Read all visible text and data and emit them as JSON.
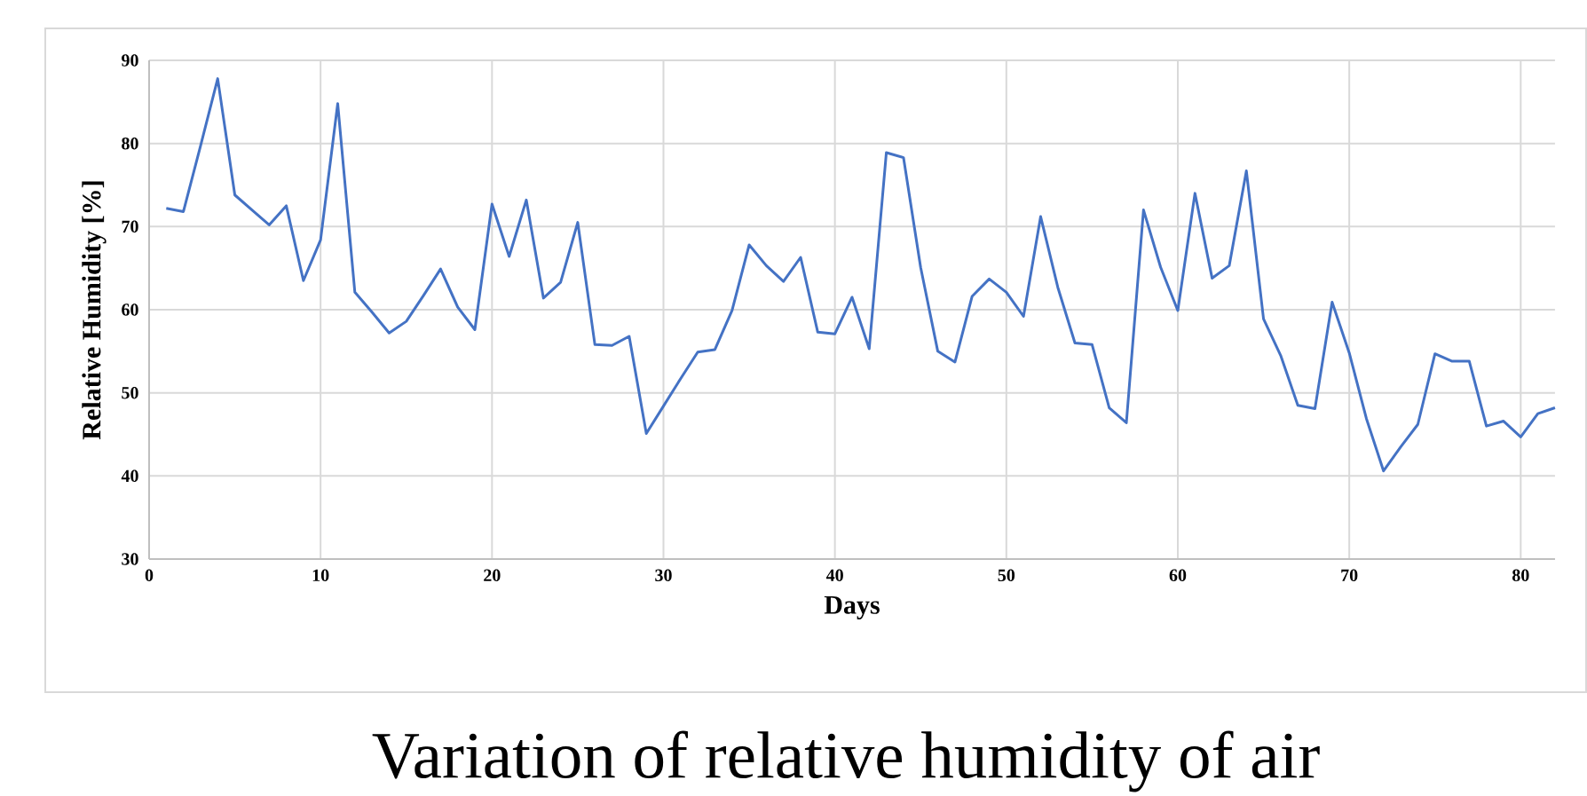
{
  "chart_data": {
    "type": "line",
    "title": "Variation of relative humidity of air",
    "xlabel": "Days",
    "ylabel": "Relative Humidity [%]",
    "x": [
      1,
      2,
      3,
      4,
      5,
      6,
      7,
      8,
      9,
      10,
      11,
      12,
      13,
      14,
      15,
      16,
      17,
      18,
      19,
      20,
      21,
      22,
      23,
      24,
      25,
      26,
      27,
      28,
      29,
      30,
      31,
      32,
      33,
      34,
      35,
      36,
      37,
      38,
      39,
      40,
      41,
      42,
      43,
      44,
      45,
      46,
      47,
      48,
      49,
      50,
      51,
      52,
      53,
      54,
      55,
      56,
      57,
      58,
      59,
      60,
      61,
      62,
      63,
      64,
      65,
      66,
      67,
      68,
      69,
      70,
      71,
      72,
      73,
      74,
      75,
      76,
      77,
      78,
      79,
      80,
      81,
      82
    ],
    "series": [
      {
        "color": "#4472c4",
        "values": [
          72.2,
          71.8,
          79.7,
          87.8,
          73.8,
          72.0,
          70.2,
          72.5,
          63.5,
          68.4,
          84.8,
          62.1,
          59.7,
          57.2,
          58.6,
          61.7,
          64.9,
          60.3,
          57.6,
          72.7,
          66.4,
          73.2,
          61.4,
          63.3,
          70.5,
          55.8,
          55.7,
          56.8,
          45.1,
          48.4,
          51.7,
          54.9,
          55.2,
          59.9,
          67.8,
          65.3,
          63.4,
          66.3,
          57.3,
          57.1,
          61.5,
          55.3,
          78.9,
          78.3,
          65.1,
          55.0,
          53.7,
          61.6,
          63.7,
          62.1,
          59.2,
          71.2,
          62.7,
          56.0,
          55.8,
          48.2,
          46.4,
          72.0,
          65.1,
          59.9,
          74.0,
          63.8,
          65.3,
          76.7,
          58.9,
          54.5,
          48.5,
          48.1,
          60.9,
          54.8,
          46.9,
          40.6,
          43.5,
          46.2,
          54.7,
          53.8,
          53.8,
          46.0,
          46.6,
          44.7,
          47.5,
          48.2
        ]
      }
    ],
    "xlim": [
      0,
      82
    ],
    "xticks": [
      0,
      10,
      20,
      30,
      40,
      50,
      60,
      70,
      80
    ],
    "ylim": [
      30,
      90
    ],
    "yticks": [
      30,
      40,
      50,
      60,
      70,
      80,
      90
    ],
    "grid": true,
    "marker": "none",
    "line_style": "solid"
  }
}
